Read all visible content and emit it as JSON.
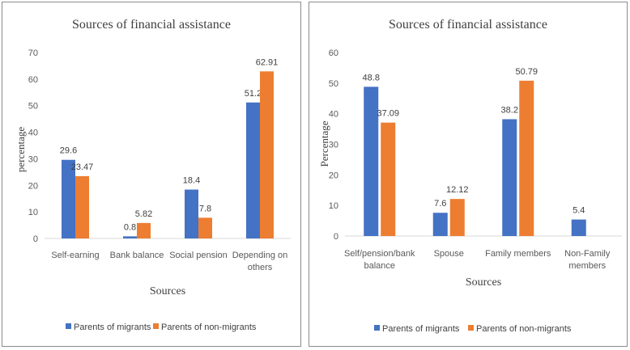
{
  "chart_data": [
    {
      "type": "bar",
      "title": "Sources of financial  assistance",
      "xlabel": "Sources",
      "ylabel": "percentage",
      "ylim": [
        0,
        70
      ],
      "yticks": [
        "0",
        "10",
        "20",
        "30",
        "40",
        "50",
        "60",
        "70"
      ],
      "categories": [
        [
          "Self-earning"
        ],
        [
          "Bank balance"
        ],
        [
          "Social pension"
        ],
        [
          "Depending on",
          "others"
        ]
      ],
      "series": [
        {
          "name": "Parents of migrants",
          "color": "#4472c4",
          "values": [
            29.6,
            0.8,
            18.4,
            51.2
          ],
          "labels": [
            "29.6",
            "0.8",
            "18.4",
            "51.2"
          ]
        },
        {
          "name": "Parents of non-migrants",
          "color": "#ed7d31",
          "values": [
            23.47,
            5.82,
            7.8,
            62.91
          ],
          "labels": [
            "23.47",
            "5.82",
            "7.8",
            "62.91"
          ]
        }
      ],
      "legend": "bottom"
    },
    {
      "type": "bar",
      "title": "Sources of financial assistance",
      "xlabel": "Sources",
      "ylabel": "Percentage",
      "ylim": [
        0,
        60
      ],
      "yticks": [
        "0",
        "10",
        "20",
        "30",
        "40",
        "50",
        "60"
      ],
      "categories": [
        [
          "Self/pension/bank",
          "balance"
        ],
        [
          "Spouse"
        ],
        [
          "Family members"
        ],
        [
          "Non-Family",
          "members"
        ]
      ],
      "series": [
        {
          "name": "Parents of migrants",
          "color": "#4472c4",
          "values": [
            48.8,
            7.6,
            38.2,
            5.4
          ],
          "labels": [
            "48.8",
            "7.6",
            "38.2",
            "5.4"
          ]
        },
        {
          "name": "Parents of non-migrants",
          "color": "#ed7d31",
          "values": [
            37.09,
            12.12,
            50.79,
            null
          ],
          "labels": [
            "37.09",
            "12.12",
            "50.79",
            null
          ]
        }
      ],
      "legend": "bottom"
    }
  ]
}
